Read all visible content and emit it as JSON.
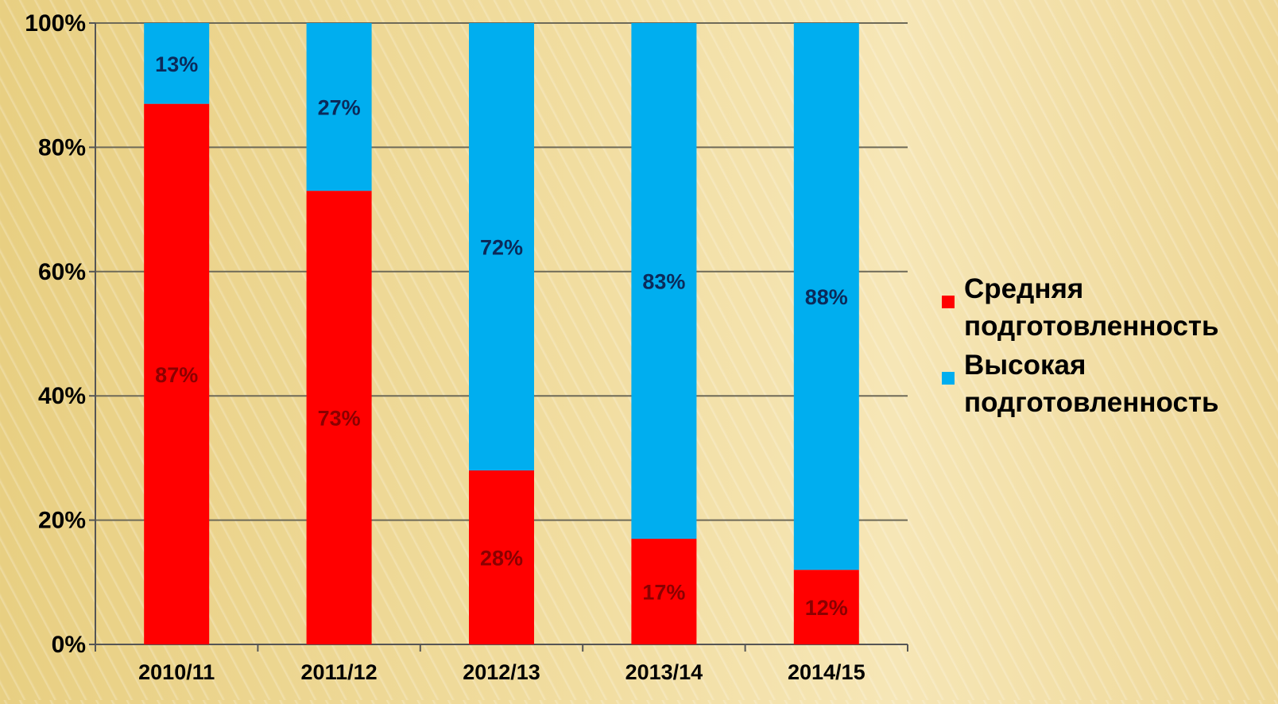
{
  "chart_data": {
    "type": "bar",
    "stacked": true,
    "categories": [
      "2010/11",
      "2011/12",
      "2012/13",
      "2013/14",
      "2014/15"
    ],
    "series": [
      {
        "name": "Средняя подготовленность",
        "values": [
          87,
          73,
          28,
          17,
          12
        ],
        "color": "#ff0000"
      },
      {
        "name": "Высокая подготовленность",
        "values": [
          13,
          27,
          72,
          83,
          88
        ],
        "color": "#00aeef"
      }
    ],
    "data_labels": {
      "Средняя подготовленность": [
        "87%",
        "73%",
        "28%",
        "17%",
        "12%"
      ],
      "Высокая подготовленность": [
        "13%",
        "27%",
        "72%",
        "83%",
        "88%"
      ]
    },
    "ylim": [
      0,
      100
    ],
    "yticks": [
      "0%",
      "20%",
      "40%",
      "60%",
      "80%",
      "100%"
    ],
    "ytick_values": [
      0,
      20,
      40,
      60,
      80,
      100
    ],
    "grid": true,
    "legend_position": "right",
    "xlabel": "",
    "ylabel": ""
  },
  "legend": {
    "items": [
      {
        "label": "Средняя\nподготовленность",
        "color": "#ff0000"
      },
      {
        "label": "Высокая\nподготовленность",
        "color": "#00aeef"
      }
    ]
  }
}
